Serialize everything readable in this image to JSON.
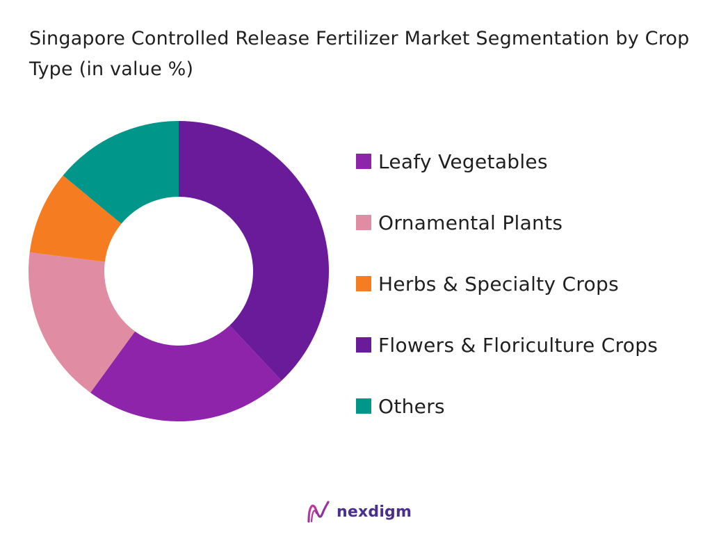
{
  "chart_data": {
    "type": "pie",
    "title": "Singapore Controlled Release Fertilizer Market Segmentation by Crop Type (in value %)",
    "donut": true,
    "legend_position": "right",
    "categories": [
      "Leafy Vegetables",
      "Ornamental Plants",
      "Herbs & Specialty Crops",
      "Flowers & Floriculture Crops",
      "Others"
    ],
    "values": [
      22,
      17,
      9,
      38,
      14
    ],
    "colors": [
      "#8e24aa",
      "#e08ca3",
      "#f57c20",
      "#6a1b9a",
      "#00968a"
    ],
    "draw_order": [
      3,
      0,
      1,
      2,
      4
    ]
  },
  "brand": {
    "name": "nexdigm",
    "color": "#4b2f8f",
    "icon": "nexdigm-logo-icon"
  }
}
